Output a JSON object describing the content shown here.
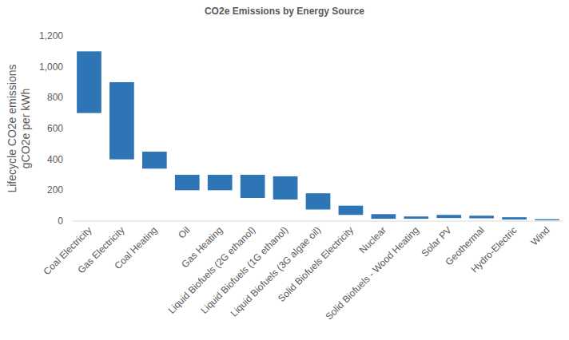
{
  "chart_data": {
    "type": "floating_bar",
    "title": "CO2e Emissions by Energy Source",
    "y_label": [
      "Lifecycle CO2e emissions",
      "gCO2e per kWh"
    ],
    "categories": [
      "Coal Electricity",
      "Gas Electricity",
      "Coal Heating",
      "Oil",
      "Gas Heating",
      "Liquid Biofuels (2G ethanol)",
      "Liquid Biofuels (1G ethanol)",
      "Liquid Biofuels (3G algae oil)",
      "Solid Biofuels Electricity",
      "Nuclear",
      "Solid Biofuels - Wood Heating",
      "Solar PV",
      "Geothermal",
      "Hydro-Electric",
      "Wind"
    ],
    "low": [
      700,
      400,
      340,
      200,
      200,
      150,
      140,
      75,
      40,
      15,
      15,
      20,
      18,
      10,
      5
    ],
    "high": [
      1100,
      900,
      450,
      300,
      300,
      300,
      290,
      180,
      100,
      45,
      30,
      40,
      35,
      25,
      12
    ],
    "color": "#2e75b6",
    "ylim": [
      0,
      1200
    ],
    "yticks": [
      0,
      200,
      400,
      600,
      800,
      {
        "value": 1000,
        "label": "1,000"
      },
      {
        "value": 1200,
        "label": "1,200"
      }
    ],
    "grid": false
  }
}
